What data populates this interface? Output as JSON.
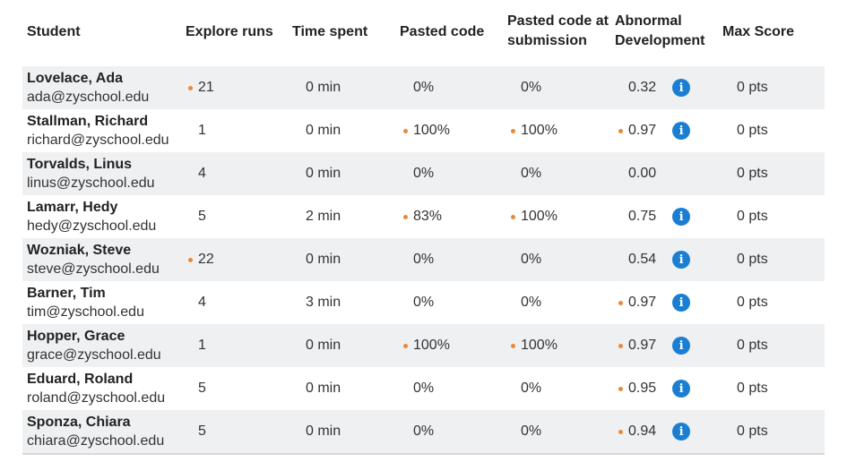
{
  "headers": {
    "student": "Student",
    "explore_runs": "Explore runs",
    "time_spent": "Time spent",
    "pasted_code": "Pasted code",
    "pasted_code_submission_line1": "Pasted code at",
    "pasted_code_submission_line2": "submission",
    "abnormal_line1": "Abnormal",
    "abnormal_line2": "Development",
    "max_score": "Max Score"
  },
  "flag_color": "#e8893a",
  "info_icon_color": "#1a7fd3",
  "rows": [
    {
      "name": "Lovelace, Ada",
      "email": "ada@zyschool.edu",
      "runs": "21",
      "runs_flag": true,
      "time": "0 min",
      "pasted": "0%",
      "pasted_flag": false,
      "pasted_sub": "0%",
      "pasted_sub_flag": false,
      "abnormal": "0.32",
      "abnormal_flag": false,
      "info": true,
      "score": "0 pts"
    },
    {
      "name": "Stallman, Richard",
      "email": "richard@zyschool.edu",
      "runs": "1",
      "runs_flag": false,
      "time": "0 min",
      "pasted": "100%",
      "pasted_flag": true,
      "pasted_sub": "100%",
      "pasted_sub_flag": true,
      "abnormal": "0.97",
      "abnormal_flag": true,
      "info": true,
      "score": "0 pts"
    },
    {
      "name": "Torvalds, Linus",
      "email": "linus@zyschool.edu",
      "runs": "4",
      "runs_flag": false,
      "time": "0 min",
      "pasted": "0%",
      "pasted_flag": false,
      "pasted_sub": "0%",
      "pasted_sub_flag": false,
      "abnormal": "0.00",
      "abnormal_flag": false,
      "info": false,
      "score": "0 pts"
    },
    {
      "name": "Lamarr, Hedy",
      "email": "hedy@zyschool.edu",
      "runs": "5",
      "runs_flag": false,
      "time": "2 min",
      "pasted": "83%",
      "pasted_flag": true,
      "pasted_sub": "100%",
      "pasted_sub_flag": true,
      "abnormal": "0.75",
      "abnormal_flag": false,
      "info": true,
      "score": "0 pts"
    },
    {
      "name": "Wozniak, Steve",
      "email": "steve@zyschool.edu",
      "runs": "22",
      "runs_flag": true,
      "time": "0 min",
      "pasted": "0%",
      "pasted_flag": false,
      "pasted_sub": "0%",
      "pasted_sub_flag": false,
      "abnormal": "0.54",
      "abnormal_flag": false,
      "info": true,
      "score": "0 pts"
    },
    {
      "name": "Barner, Tim",
      "email": "tim@zyschool.edu",
      "runs": "4",
      "runs_flag": false,
      "time": "3 min",
      "pasted": "0%",
      "pasted_flag": false,
      "pasted_sub": "0%",
      "pasted_sub_flag": false,
      "abnormal": "0.97",
      "abnormal_flag": true,
      "info": true,
      "score": "0 pts"
    },
    {
      "name": "Hopper, Grace",
      "email": "grace@zyschool.edu",
      "runs": "1",
      "runs_flag": false,
      "time": "0 min",
      "pasted": "100%",
      "pasted_flag": true,
      "pasted_sub": "100%",
      "pasted_sub_flag": true,
      "abnormal": "0.97",
      "abnormal_flag": true,
      "info": true,
      "score": "0 pts"
    },
    {
      "name": "Eduard, Roland",
      "email": "roland@zyschool.edu",
      "runs": "5",
      "runs_flag": false,
      "time": "0 min",
      "pasted": "0%",
      "pasted_flag": false,
      "pasted_sub": "0%",
      "pasted_sub_flag": false,
      "abnormal": "0.95",
      "abnormal_flag": true,
      "info": true,
      "score": "0 pts"
    },
    {
      "name": "Sponza, Chiara",
      "email": "chiara@zyschool.edu",
      "runs": "5",
      "runs_flag": false,
      "time": "0 min",
      "pasted": "0%",
      "pasted_flag": false,
      "pasted_sub": "0%",
      "pasted_sub_flag": false,
      "abnormal": "0.94",
      "abnormal_flag": true,
      "info": true,
      "score": "0 pts"
    }
  ]
}
